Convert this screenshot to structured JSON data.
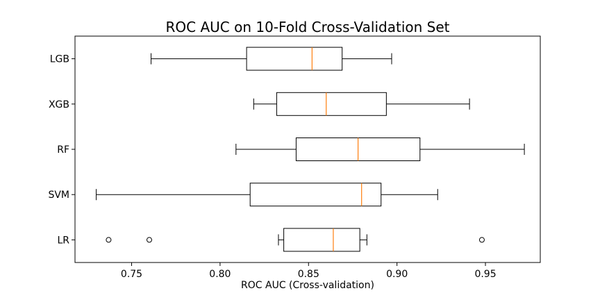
{
  "chart_data": {
    "type": "boxplot",
    "orientation": "horizontal",
    "title": "ROC AUC on 10-Fold Cross-Validation Set",
    "xlabel": "ROC AUC (Cross-validation)",
    "ylabel": "",
    "xlim": [
      0.718,
      0.981
    ],
    "xticks": [
      0.75,
      0.8,
      0.85,
      0.9,
      0.95
    ],
    "xtick_labels": [
      "0.75",
      "0.80",
      "0.85",
      "0.90",
      "0.95"
    ],
    "grid": false,
    "colors": {
      "box": "#000000",
      "median": "#ff7f0e",
      "flier": "#000000"
    },
    "series": [
      {
        "name": "LGB",
        "whisker_low": 0.761,
        "q1": 0.815,
        "median": 0.852,
        "q3": 0.869,
        "whisker_high": 0.897,
        "fliers": []
      },
      {
        "name": "XGB",
        "whisker_low": 0.819,
        "q1": 0.832,
        "median": 0.86,
        "q3": 0.894,
        "whisker_high": 0.941,
        "fliers": []
      },
      {
        "name": "RF",
        "whisker_low": 0.809,
        "q1": 0.843,
        "median": 0.878,
        "q3": 0.913,
        "whisker_high": 0.972,
        "fliers": []
      },
      {
        "name": "SVM",
        "whisker_low": 0.73,
        "q1": 0.817,
        "median": 0.88,
        "q3": 0.891,
        "whisker_high": 0.923,
        "fliers": []
      },
      {
        "name": "LR",
        "whisker_low": 0.833,
        "q1": 0.836,
        "median": 0.864,
        "q3": 0.879,
        "whisker_high": 0.883,
        "fliers": [
          0.737,
          0.76,
          0.948
        ]
      }
    ]
  }
}
